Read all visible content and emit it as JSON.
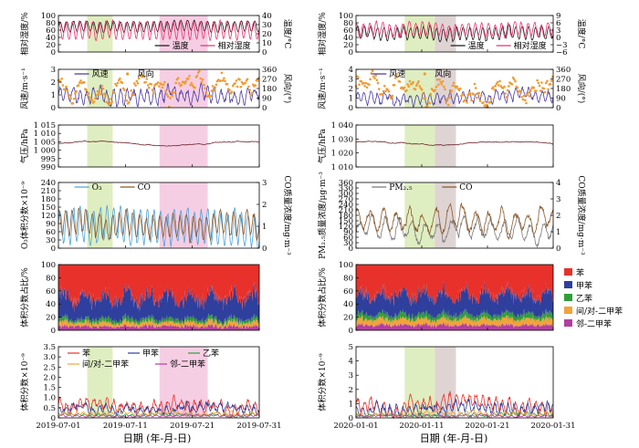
{
  "figure": {
    "xlabel": "日期 (年-月-日)"
  },
  "colors": {
    "green_band": "#d9ebb5",
    "pink_band": "#f5c6df",
    "gray_band": "#d9cccc",
    "temp": "#1a1a1a",
    "rh": "#e8336d",
    "wind_speed": "#4b3aa3",
    "wind_dir": "#f29b30",
    "pressure": "#6b1f2a",
    "o3": "#4fa3d9",
    "co": "#8b5a2b",
    "pm": "#7a7a7a",
    "benzene": "#e8312a",
    "toluene": "#2e3f9e",
    "ethylbenzene": "#2f9e3a",
    "mp_xylene": "#f2a33a",
    "o_xylene": "#b23fa0"
  },
  "chart_data": [
    {
      "id": "summer",
      "type": "line",
      "dates": [
        "2019-07-01",
        "2019-07-11",
        "2019-07-21",
        "2019-07-31"
      ],
      "highlight_periods": [
        {
          "color": "green",
          "start_day": 4.3,
          "end_day": 8.1
        },
        {
          "color": "pink",
          "start_day": 15.1,
          "end_day": 22.3
        }
      ],
      "panels": [
        {
          "key": "temp_rh",
          "type": "line",
          "ylabel_left": "相对湿度/%",
          "ylabel_right": "温度/°C",
          "ylim_left": [
            0,
            100
          ],
          "ylim_right": [
            0,
            40
          ],
          "yticks_left": [
            "0",
            "20",
            "40",
            "60",
            "80",
            "100"
          ],
          "yticks_right": [
            "0",
            "10",
            "20",
            "30",
            "40"
          ],
          "legend": [
            "温度",
            "相对湿度"
          ],
          "series": [
            {
              "name": "温度",
              "axis": "right",
              "base": 28,
              "amp": 5.5,
              "noise": 1.5,
              "period": 1,
              "seed": 3
            },
            {
              "name": "相对湿度",
              "axis": "left",
              "base": 60,
              "amp": 24,
              "noise": 4,
              "period": 1,
              "seed": 7
            }
          ]
        },
        {
          "key": "wind",
          "type": "line+scatter",
          "ylabel_left": "风速/m·s⁻¹",
          "ylabel_right": "风向/(°)",
          "ylim_left": [
            0,
            3
          ],
          "ylim_right": [
            0,
            360
          ],
          "yticks_left": [
            "0",
            "1",
            "2",
            "3"
          ],
          "yticks_right": [
            "0",
            "90",
            "180",
            "270",
            "360"
          ],
          "legend": [
            "风速",
            "风向"
          ],
          "series": [
            {
              "name": "风速",
              "axis": "left",
              "base": 1.0,
              "amp": 0.5,
              "noise": 0.55,
              "period": 1,
              "seed": 11
            },
            {
              "name": "风向",
              "axis": "right",
              "base": 180,
              "amp": 60,
              "noise": 110,
              "period": 3,
              "seed": 13
            }
          ]
        },
        {
          "key": "pressure",
          "type": "line",
          "ylabel_left": "气压/hPa",
          "ylim_left": [
            990,
            1015
          ],
          "yticks_left": [
            "990",
            "995",
            "1 000",
            "1 005",
            "1 010",
            "1 015"
          ],
          "legend": [],
          "series": [
            {
              "name": "",
              "axis": "left",
              "base": 1004,
              "amp": 1.2,
              "noise": 0.8,
              "period": 1,
              "seed": 17
            }
          ]
        },
        {
          "key": "o3_co",
          "type": "line",
          "ylabel_left": "O₃体积分数×10⁻⁹",
          "ylabel_right": "CO质量浓度/mg·m⁻³",
          "ylim_left": [
            0,
            240
          ],
          "ylim_right": [
            0,
            3
          ],
          "yticks_left": [
            "0",
            "30",
            "60",
            "90",
            "120",
            "150",
            "180",
            "210",
            "240"
          ],
          "yticks_right": [
            "0",
            "1",
            "2",
            "3"
          ],
          "legend": [
            "O₃",
            "CO"
          ],
          "series": [
            {
              "name": "O₃",
              "axis": "left",
              "base": 80,
              "amp": 60,
              "noise": 25,
              "period": 1,
              "seed": 19
            },
            {
              "name": "CO",
              "axis": "right",
              "base": 1.1,
              "amp": 0.5,
              "noise": 0.35,
              "period": 1,
              "seed": 23
            }
          ]
        },
        {
          "key": "fraction",
          "type": "area",
          "ylabel_left": "体积分数占比/%",
          "ylim_left": [
            0,
            100
          ],
          "yticks_left": [
            "0",
            "20",
            "40",
            "60",
            "80",
            "100"
          ],
          "legend": [],
          "series": [
            {
              "name": "邻-二甲苯",
              "mean": 6,
              "noise": 3
            },
            {
              "name": "间/对-二甲苯",
              "mean": 6,
              "noise": 3
            },
            {
              "name": "乙苯",
              "mean": 5,
              "noise": 2.5
            },
            {
              "name": "甲苯",
              "mean": 33,
              "noise": 12
            },
            {
              "name": "苯",
              "mean": 50,
              "noise": 0
            }
          ]
        },
        {
          "key": "voc",
          "type": "line",
          "ylabel_left": "体积分数×10⁻⁹",
          "ylim_left": [
            0,
            3.5
          ],
          "yticks_left": [
            "0",
            "0.5",
            "1.0",
            "1.5",
            "2.0",
            "2.5",
            "3.0",
            "3.5"
          ],
          "legend": [
            "苯",
            "甲苯",
            "乙苯",
            "间/对-二甲苯",
            "邻-二甲苯"
          ],
          "series": [
            {
              "name": "苯",
              "axis": "left",
              "base": 0.55,
              "amp": 0.2,
              "noise": 0.35,
              "period": 1,
              "seed": 29
            },
            {
              "name": "甲苯",
              "axis": "left",
              "base": 0.4,
              "amp": 0.15,
              "noise": 0.3,
              "period": 1,
              "seed": 31
            },
            {
              "name": "乙苯",
              "axis": "left",
              "base": 0.15,
              "amp": 0.05,
              "noise": 0.08,
              "period": 1,
              "seed": 37
            },
            {
              "name": "间/对-二甲苯",
              "axis": "left",
              "base": 0.2,
              "amp": 0.06,
              "noise": 0.1,
              "period": 1,
              "seed": 41
            },
            {
              "name": "邻-二甲苯",
              "axis": "left",
              "base": 0.1,
              "amp": 0.04,
              "noise": 0.05,
              "period": 1,
              "seed": 43
            }
          ]
        }
      ]
    },
    {
      "id": "winter",
      "type": "line",
      "dates": [
        "2020-01-01",
        "2020-01-11",
        "2020-01-21",
        "2020-01-31"
      ],
      "highlight_periods": [
        {
          "color": "green",
          "start_day": 7.4,
          "end_day": 12.0
        },
        {
          "color": "gray",
          "start_day": 12.0,
          "end_day": 15.2
        }
      ],
      "panels": [
        {
          "key": "temp_rh",
          "type": "line",
          "ylabel_left": "相对湿度/%",
          "ylabel_right": "温度/°C",
          "ylim_left": [
            0,
            100
          ],
          "ylim_right": [
            -6,
            9
          ],
          "yticks_left": [
            "0",
            "20",
            "40",
            "60",
            "80",
            "100"
          ],
          "yticks_right": [
            "−6",
            "−3",
            "0",
            "3",
            "6",
            "9"
          ],
          "legend": [
            "温度",
            "相对湿度"
          ],
          "series": [
            {
              "name": "温度",
              "axis": "right",
              "base": 2,
              "amp": 2.5,
              "noise": 1.2,
              "period": 1,
              "seed": 47
            },
            {
              "name": "相对湿度",
              "axis": "left",
              "base": 62,
              "amp": 18,
              "noise": 8,
              "period": 1,
              "seed": 53
            }
          ]
        },
        {
          "key": "wind",
          "type": "line+scatter",
          "ylabel_left": "风速/m·s⁻¹",
          "ylabel_right": "风向/(°)",
          "ylim_left": [
            0,
            4
          ],
          "ylim_right": [
            0,
            360
          ],
          "yticks_left": [
            "0",
            "1",
            "2",
            "3",
            "4"
          ],
          "yticks_right": [
            "0",
            "90",
            "180",
            "270",
            "360"
          ],
          "legend": [
            "风速",
            "风向"
          ],
          "series": [
            {
              "name": "风速",
              "axis": "left",
              "base": 1.1,
              "amp": 0.5,
              "noise": 0.6,
              "period": 1,
              "seed": 59
            },
            {
              "name": "风向",
              "axis": "right",
              "base": 170,
              "amp": 50,
              "noise": 120,
              "period": 3,
              "seed": 61
            }
          ]
        },
        {
          "key": "pressure",
          "type": "line",
          "ylabel_left": "气压/hPa",
          "ylim_left": [
            1010,
            1040
          ],
          "yticks_left": [
            "1 010",
            "1 020",
            "1 030",
            "1 040"
          ],
          "legend": [],
          "series": [
            {
              "name": "",
              "axis": "left",
              "base": 1027,
              "amp": 1.2,
              "noise": 1.0,
              "period": 1,
              "seed": 67
            }
          ]
        },
        {
          "key": "pm_co",
          "type": "line",
          "ylabel_left": "PM₂.₅质量浓度/μg·m⁻³",
          "ylabel_right": "CO质量浓度/mg·m⁻³",
          "ylim_left": [
            0,
            360
          ],
          "ylim_right": [
            0,
            4
          ],
          "yticks_left": [
            "0",
            "30",
            "60",
            "90",
            "120",
            "150",
            "180",
            "210",
            "240",
            "270",
            "300",
            "330",
            "360"
          ],
          "yticks_right": [
            "0",
            "1",
            "2",
            "3",
            "4"
          ],
          "legend": [
            "PM₂.₅",
            "CO"
          ],
          "series": [
            {
              "name": "PM₂.₅",
              "axis": "left",
              "base": 110,
              "amp": 50,
              "noise": 40,
              "period": 2,
              "seed": 71
            },
            {
              "name": "CO",
              "axis": "right",
              "base": 1.6,
              "amp": 0.6,
              "noise": 0.5,
              "period": 2,
              "seed": 73
            }
          ]
        },
        {
          "key": "fraction",
          "type": "area",
          "ylabel_left": "体积分数占比/%",
          "ylim_left": [
            0,
            100
          ],
          "yticks_left": [
            "0",
            "20",
            "40",
            "60",
            "80",
            "100"
          ],
          "legend": [
            "苯",
            "甲苯",
            "乙苯",
            "间/对-二甲苯",
            "邻-二甲苯"
          ],
          "series": [
            {
              "name": "邻-二甲苯",
              "mean": 8,
              "noise": 3
            },
            {
              "name": "间/对-二甲苯",
              "mean": 9,
              "noise": 3
            },
            {
              "name": "乙苯",
              "mean": 7,
              "noise": 3
            },
            {
              "name": "甲苯",
              "mean": 30,
              "noise": 10
            },
            {
              "name": "苯",
              "mean": 46,
              "noise": 0
            }
          ]
        },
        {
          "key": "voc",
          "type": "line",
          "ylabel_left": "体积分数×10⁻⁹",
          "ylim_left": [
            0,
            5
          ],
          "yticks_left": [
            "0",
            "1",
            "2",
            "3",
            "4",
            "5"
          ],
          "legend": [],
          "series": [
            {
              "name": "苯",
              "axis": "left",
              "base": 0.9,
              "amp": 0.4,
              "noise": 0.5,
              "period": 1,
              "seed": 79
            },
            {
              "name": "甲苯",
              "axis": "left",
              "base": 0.6,
              "amp": 0.3,
              "noise": 0.5,
              "period": 1,
              "seed": 83
            },
            {
              "name": "乙苯",
              "axis": "left",
              "base": 0.2,
              "amp": 0.1,
              "noise": 0.15,
              "period": 1,
              "seed": 89
            },
            {
              "name": "间/对-二甲苯",
              "axis": "left",
              "base": 0.3,
              "amp": 0.1,
              "noise": 0.2,
              "period": 1,
              "seed": 97
            },
            {
              "name": "邻-二甲苯",
              "axis": "left",
              "base": 0.15,
              "amp": 0.05,
              "noise": 0.08,
              "period": 1,
              "seed": 101
            }
          ]
        }
      ]
    }
  ]
}
